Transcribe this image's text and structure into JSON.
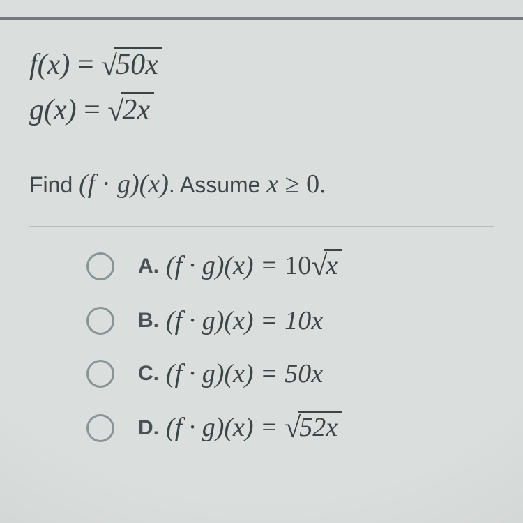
{
  "functions": {
    "f": {
      "name": "f",
      "var": "x",
      "radicand": "50x"
    },
    "g": {
      "name": "g",
      "var": "x",
      "radicand": "2x"
    }
  },
  "prompt": {
    "lead": "Find ",
    "expr": "(f · g)(x)",
    "tail1": ". Assume ",
    "cond_var": "x",
    "cond_rel": " ≥ 0."
  },
  "options": {
    "a": {
      "letter": "A.",
      "lhs": "(f · g)(x) = ",
      "rhs_coeff": "10",
      "rhs_sqrt": "x"
    },
    "b": {
      "letter": "B.",
      "lhs": "(f · g)(x) = ",
      "rhs": "10x"
    },
    "c": {
      "letter": "C.",
      "lhs": "(f · g)(x) = ",
      "rhs": "50x"
    },
    "d": {
      "letter": "D.",
      "lhs": "(f · g)(x) = ",
      "rhs_sqrt": "52x"
    }
  },
  "style": {
    "bg": "#dadedc",
    "text": "#3c4546",
    "rule": "#72797a"
  }
}
